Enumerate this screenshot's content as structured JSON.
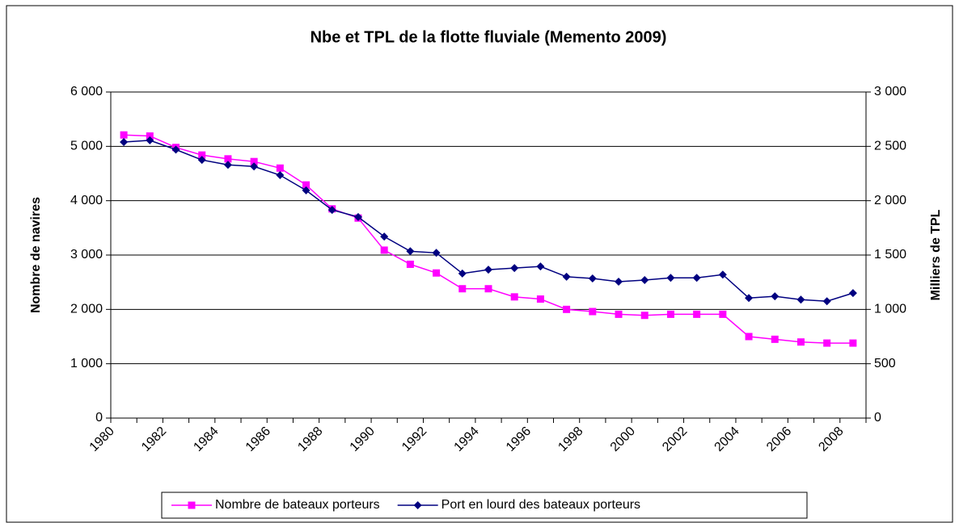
{
  "chart_data": {
    "type": "line",
    "title": "Nbe et TPL de la flotte fluviale (Memento 2009)",
    "y_label": "Nombre de navires",
    "y2_label": "Milliers de TPL",
    "categories": [
      "1980",
      null,
      "1982",
      null,
      "1984",
      null,
      "1986",
      null,
      "1988",
      null,
      "1990",
      null,
      "1992",
      null,
      "1994",
      null,
      "1996",
      null,
      "1998",
      null,
      "2000",
      null,
      "2002",
      null,
      "2004",
      null,
      "2006",
      null,
      "2008"
    ],
    "series": [
      {
        "name": "Nombre de bateaux porteurs",
        "color": "#ff00ff",
        "marker": "square",
        "values": [
          5210,
          5190,
          4980,
          4840,
          4770,
          4720,
          4600,
          4290,
          3850,
          3680,
          3090,
          2830,
          2670,
          2380,
          2380,
          2230,
          2190,
          2000,
          1960,
          1910,
          1890,
          1910,
          1910,
          1910,
          1500,
          1450,
          1400,
          1380,
          1380
        ]
      },
      {
        "name": "Port en lourd des bateaux porteurs",
        "color": "#000080",
        "marker": "diamond",
        "axis": "y2",
        "values": [
          2540,
          2555,
          2470,
          2375,
          2330,
          2315,
          2235,
          2095,
          1915,
          1850,
          1670,
          1535,
          1520,
          1330,
          1365,
          1380,
          1395,
          1300,
          1285,
          1255,
          1270,
          1290,
          1290,
          1320,
          1105,
          1120,
          1090,
          1075,
          1150
        ]
      }
    ],
    "ylim": [
      0,
      6000
    ],
    "yticks": [
      0,
      {
        "value": 1000,
        "label": "1 000"
      },
      {
        "value": 2000,
        "label": "2 000"
      },
      {
        "value": 3000,
        "label": "3 000"
      },
      {
        "value": 4000,
        "label": "4 000"
      },
      {
        "value": 5000,
        "label": "5 000"
      },
      {
        "value": 6000,
        "label": "6 000"
      }
    ],
    "y2lim": [
      0,
      3000
    ],
    "y2ticks": [
      0,
      500,
      {
        "value": 1000,
        "label": "1 000"
      },
      {
        "value": 1500,
        "label": "1 500"
      },
      {
        "value": 2000,
        "label": "2 000"
      },
      {
        "value": 2500,
        "label": "2 500"
      },
      {
        "value": 3000,
        "label": "3 000"
      }
    ],
    "grid": true,
    "legend": "bottom"
  }
}
